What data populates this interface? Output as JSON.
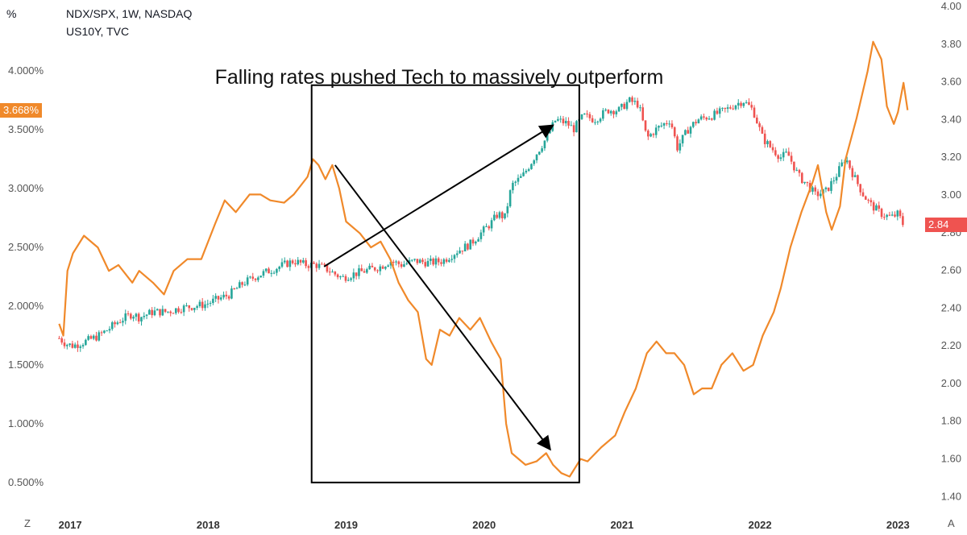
{
  "symbols": {
    "primary": "NDX/SPX, 1W, NASDAQ",
    "secondary": "US10Y, TVC"
  },
  "unit_label": "%",
  "scale_mode": "Z",
  "auto_scale": "A",
  "annotation": "Falling rates pushed Tech to massively outperform",
  "colors": {
    "us10y": "#F0892A",
    "candle_up": "#26A69A",
    "candle_down": "#EF5350",
    "box": "#000000",
    "arrow": "#000000"
  },
  "chart_data": {
    "type": "line",
    "title": "Falling rates pushed Tech to massively outperform",
    "x_labels": [
      "2017",
      "2018",
      "2019",
      "2020",
      "2021",
      "2022",
      "2023"
    ],
    "x_range": [
      2016.9,
      2023.15
    ],
    "left_axis": {
      "label": "%",
      "ticks": [
        "0.500%",
        "1.000%",
        "1.500%",
        "2.000%",
        "2.500%",
        "3.000%",
        "3.500%",
        "4.000%"
      ],
      "range": [
        0.3,
        4.55
      ]
    },
    "right_axis": {
      "ticks": [
        "1.40",
        "1.60",
        "1.80",
        "2.00",
        "2.20",
        "2.40",
        "2.60",
        "2.80",
        "3.00",
        "3.20",
        "3.40",
        "3.60",
        "3.80",
        "4.00"
      ],
      "range": [
        1.35,
        4.0
      ]
    },
    "last_value_labels": {
      "us10y": "3.668%",
      "ndx_spx": "2.84"
    },
    "series": [
      {
        "name": "US10Y",
        "axis": "left",
        "style": "line",
        "points": [
          [
            2016.92,
            1.85
          ],
          [
            2016.95,
            1.75
          ],
          [
            2016.98,
            2.3
          ],
          [
            2017.02,
            2.45
          ],
          [
            2017.1,
            2.6
          ],
          [
            2017.2,
            2.5
          ],
          [
            2017.28,
            2.3
          ],
          [
            2017.35,
            2.35
          ],
          [
            2017.45,
            2.2
          ],
          [
            2017.5,
            2.3
          ],
          [
            2017.6,
            2.2
          ],
          [
            2017.68,
            2.1
          ],
          [
            2017.75,
            2.3
          ],
          [
            2017.85,
            2.4
          ],
          [
            2017.95,
            2.4
          ],
          [
            2018.05,
            2.7
          ],
          [
            2018.12,
            2.9
          ],
          [
            2018.2,
            2.8
          ],
          [
            2018.3,
            2.95
          ],
          [
            2018.38,
            2.95
          ],
          [
            2018.45,
            2.9
          ],
          [
            2018.55,
            2.88
          ],
          [
            2018.62,
            2.95
          ],
          [
            2018.72,
            3.1
          ],
          [
            2018.76,
            3.25
          ],
          [
            2018.8,
            3.2
          ],
          [
            2018.85,
            3.08
          ],
          [
            2018.9,
            3.2
          ],
          [
            2018.95,
            3.0
          ],
          [
            2019.0,
            2.72
          ],
          [
            2019.1,
            2.62
          ],
          [
            2019.18,
            2.5
          ],
          [
            2019.25,
            2.55
          ],
          [
            2019.32,
            2.4
          ],
          [
            2019.38,
            2.2
          ],
          [
            2019.45,
            2.05
          ],
          [
            2019.52,
            1.95
          ],
          [
            2019.58,
            1.55
          ],
          [
            2019.62,
            1.5
          ],
          [
            2019.68,
            1.8
          ],
          [
            2019.75,
            1.75
          ],
          [
            2019.82,
            1.9
          ],
          [
            2019.9,
            1.8
          ],
          [
            2019.97,
            1.9
          ],
          [
            2020.05,
            1.7
          ],
          [
            2020.12,
            1.55
          ],
          [
            2020.16,
            1.0
          ],
          [
            2020.2,
            0.75
          ],
          [
            2020.25,
            0.7
          ],
          [
            2020.3,
            0.65
          ],
          [
            2020.38,
            0.68
          ],
          [
            2020.45,
            0.75
          ],
          [
            2020.5,
            0.65
          ],
          [
            2020.56,
            0.58
          ],
          [
            2020.62,
            0.55
          ],
          [
            2020.7,
            0.7
          ],
          [
            2020.75,
            0.68
          ],
          [
            2020.85,
            0.8
          ],
          [
            2020.95,
            0.9
          ],
          [
            2021.02,
            1.1
          ],
          [
            2021.1,
            1.3
          ],
          [
            2021.18,
            1.6
          ],
          [
            2021.25,
            1.7
          ],
          [
            2021.32,
            1.6
          ],
          [
            2021.38,
            1.6
          ],
          [
            2021.45,
            1.5
          ],
          [
            2021.52,
            1.25
          ],
          [
            2021.58,
            1.3
          ],
          [
            2021.65,
            1.3
          ],
          [
            2021.72,
            1.5
          ],
          [
            2021.8,
            1.6
          ],
          [
            2021.88,
            1.45
          ],
          [
            2021.95,
            1.5
          ],
          [
            2022.02,
            1.75
          ],
          [
            2022.1,
            1.95
          ],
          [
            2022.15,
            2.15
          ],
          [
            2022.22,
            2.5
          ],
          [
            2022.3,
            2.8
          ],
          [
            2022.38,
            3.05
          ],
          [
            2022.42,
            3.2
          ],
          [
            2022.48,
            2.8
          ],
          [
            2022.52,
            2.65
          ],
          [
            2022.58,
            2.85
          ],
          [
            2022.62,
            3.25
          ],
          [
            2022.7,
            3.6
          ],
          [
            2022.78,
            4.0
          ],
          [
            2022.82,
            4.25
          ],
          [
            2022.88,
            4.1
          ],
          [
            2022.92,
            3.7
          ],
          [
            2022.97,
            3.55
          ],
          [
            2023.0,
            3.65
          ],
          [
            2023.04,
            3.9
          ],
          [
            2023.07,
            3.668
          ]
        ]
      },
      {
        "name": "NDX/SPX",
        "axis": "right",
        "style": "candles",
        "points": [
          [
            2016.92,
            2.24
          ],
          [
            2016.97,
            2.21
          ],
          [
            2017.02,
            2.2
          ],
          [
            2017.1,
            2.22
          ],
          [
            2017.2,
            2.25
          ],
          [
            2017.28,
            2.29
          ],
          [
            2017.35,
            2.33
          ],
          [
            2017.45,
            2.37
          ],
          [
            2017.5,
            2.35
          ],
          [
            2017.6,
            2.38
          ],
          [
            2017.7,
            2.38
          ],
          [
            2017.8,
            2.4
          ],
          [
            2017.9,
            2.41
          ],
          [
            2017.98,
            2.42
          ],
          [
            2018.08,
            2.45
          ],
          [
            2018.15,
            2.47
          ],
          [
            2018.25,
            2.53
          ],
          [
            2018.35,
            2.57
          ],
          [
            2018.45,
            2.6
          ],
          [
            2018.55,
            2.63
          ],
          [
            2018.62,
            2.65
          ],
          [
            2018.7,
            2.63
          ],
          [
            2018.78,
            2.63
          ],
          [
            2018.85,
            2.61
          ],
          [
            2018.92,
            2.58
          ],
          [
            2018.97,
            2.56
          ],
          [
            2019.05,
            2.58
          ],
          [
            2019.15,
            2.6
          ],
          [
            2019.25,
            2.62
          ],
          [
            2019.32,
            2.65
          ],
          [
            2019.4,
            2.63
          ],
          [
            2019.5,
            2.65
          ],
          [
            2019.6,
            2.64
          ],
          [
            2019.7,
            2.65
          ],
          [
            2019.8,
            2.7
          ],
          [
            2019.9,
            2.74
          ],
          [
            2019.98,
            2.8
          ],
          [
            2020.05,
            2.85
          ],
          [
            2020.1,
            2.9
          ],
          [
            2020.15,
            2.88
          ],
          [
            2020.2,
            3.05
          ],
          [
            2020.28,
            3.1
          ],
          [
            2020.38,
            3.22
          ],
          [
            2020.45,
            3.3
          ],
          [
            2020.52,
            3.4
          ],
          [
            2020.6,
            3.38
          ],
          [
            2020.65,
            3.35
          ],
          [
            2020.72,
            3.42
          ],
          [
            2020.8,
            3.4
          ],
          [
            2020.9,
            3.45
          ],
          [
            2020.98,
            3.45
          ],
          [
            2021.05,
            3.5
          ],
          [
            2021.12,
            3.48
          ],
          [
            2021.18,
            3.3
          ],
          [
            2021.25,
            3.35
          ],
          [
            2021.35,
            3.4
          ],
          [
            2021.4,
            3.25
          ],
          [
            2021.48,
            3.35
          ],
          [
            2021.55,
            3.4
          ],
          [
            2021.65,
            3.42
          ],
          [
            2021.75,
            3.45
          ],
          [
            2021.82,
            3.48
          ],
          [
            2021.88,
            3.5
          ],
          [
            2021.95,
            3.45
          ],
          [
            2022.02,
            3.3
          ],
          [
            2022.08,
            3.25
          ],
          [
            2022.15,
            3.2
          ],
          [
            2022.2,
            3.22
          ],
          [
            2022.28,
            3.1
          ],
          [
            2022.35,
            3.05
          ],
          [
            2022.4,
            3.0
          ],
          [
            2022.48,
            3.02
          ],
          [
            2022.55,
            3.1
          ],
          [
            2022.62,
            3.2
          ],
          [
            2022.68,
            3.1
          ],
          [
            2022.75,
            3.0
          ],
          [
            2022.8,
            2.95
          ],
          [
            2022.88,
            2.9
          ],
          [
            2022.95,
            2.88
          ],
          [
            2023.0,
            2.9
          ],
          [
            2023.04,
            2.84
          ]
        ]
      }
    ],
    "annotations": [
      {
        "type": "box",
        "from": [
          2018.75,
          0.5
        ],
        "to": [
          2020.69,
          3.88
        ],
        "axis": "left"
      },
      {
        "type": "arrow",
        "from": [
          2018.84,
          2.62
        ],
        "to": [
          2020.5,
          3.37
        ],
        "axis": "right"
      },
      {
        "type": "arrow",
        "from": [
          2018.92,
          3.2
        ],
        "to": [
          2020.48,
          0.78
        ],
        "axis": "left"
      }
    ]
  }
}
